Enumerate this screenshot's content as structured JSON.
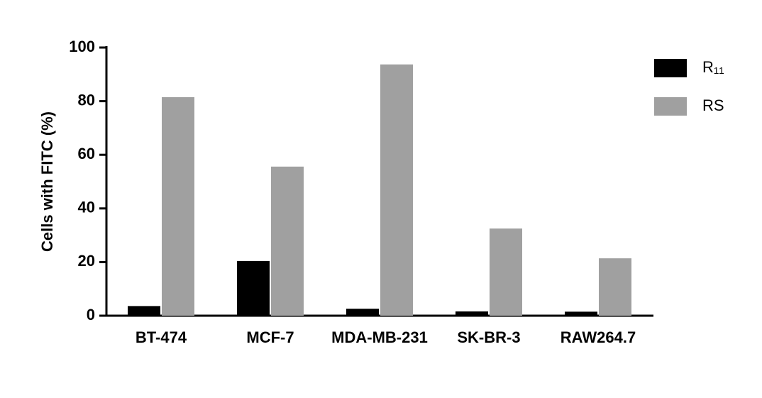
{
  "chart_data": {
    "type": "bar",
    "y_label": "Cells with FITC (%)",
    "categories": [
      "BT-474",
      "MCF-7",
      "MDA-MB-231",
      "SK-BR-3",
      "RAW264.7"
    ],
    "series": [
      {
        "name": "R₁₁",
        "color": "#000000",
        "values": [
          3.6,
          20.4,
          2.6,
          1.6,
          1.5
        ]
      },
      {
        "name": "RS",
        "color": "#a0a0a0",
        "values": [
          81.5,
          55.6,
          93.7,
          32.5,
          21.4
        ]
      }
    ],
    "ylim": [
      0,
      100
    ],
    "yticks": [
      0,
      20,
      40,
      60,
      80,
      100
    ],
    "grid": false,
    "legend": "top-right"
  }
}
